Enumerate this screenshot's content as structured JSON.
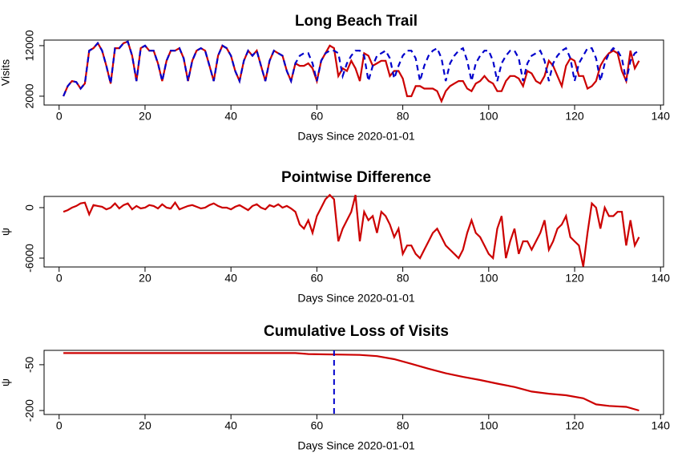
{
  "chart_data": [
    {
      "type": "line",
      "title": "Long Beach Trail",
      "xlabel": "Days Since 2020-01-01",
      "ylabel": "Visits",
      "xlim": [
        -3.5,
        140.7
      ],
      "xticks": [
        0,
        20,
        40,
        60,
        80,
        100,
        120,
        140
      ],
      "ylim": [
        250,
        13100
      ],
      "yticks": [
        2000,
        12000
      ],
      "x": [
        1,
        2,
        3,
        4,
        5,
        6,
        7,
        8,
        9,
        10,
        11,
        12,
        13,
        14,
        15,
        16,
        17,
        18,
        19,
        20,
        21,
        22,
        23,
        24,
        25,
        26,
        27,
        28,
        29,
        30,
        31,
        32,
        33,
        34,
        35,
        36,
        37,
        38,
        39,
        40,
        41,
        42,
        43,
        44,
        45,
        46,
        47,
        48,
        49,
        50,
        51,
        52,
        53,
        54,
        55,
        56,
        57,
        58,
        59,
        60,
        61,
        62,
        63,
        64,
        65,
        66,
        67,
        68,
        69,
        70,
        71,
        72,
        73,
        74,
        75,
        76,
        77,
        78,
        79,
        80,
        81,
        82,
        83,
        84,
        85,
        86,
        87,
        88,
        89,
        90,
        91,
        92,
        93,
        94,
        95,
        96,
        97,
        98,
        99,
        100,
        101,
        102,
        103,
        104,
        105,
        106,
        107,
        108,
        109,
        110,
        111,
        112,
        113,
        114,
        115,
        116,
        117,
        118,
        119,
        120,
        121,
        122,
        123,
        124,
        125,
        126,
        127,
        128,
        129,
        130,
        131,
        132,
        133,
        134,
        135
      ],
      "series": [
        {
          "color": "#cc0000",
          "linestyle": "solid",
          "values": [
            2000,
            4000,
            5000,
            4800,
            3500,
            4500,
            11000,
            11500,
            12500,
            11000,
            8000,
            4500,
            11500,
            11500,
            12500,
            12800,
            10000,
            5000,
            11500,
            12000,
            11000,
            11000,
            8500,
            5000,
            9000,
            11000,
            11000,
            11500,
            9500,
            5000,
            9000,
            11000,
            11500,
            11000,
            8000,
            5000,
            10000,
            12000,
            11500,
            10000,
            7000,
            5000,
            9000,
            11000,
            10000,
            11000,
            8000,
            5000,
            9000,
            11000,
            10500,
            10000,
            7000,
            5000,
            8500,
            8000,
            8000,
            8500,
            7500,
            5000,
            9000,
            10500,
            12000,
            11500,
            6000,
            7500,
            7000,
            9000,
            7500,
            5000,
            10500,
            10000,
            8000,
            8500,
            9000,
            9000,
            6000,
            7000,
            7000,
            5500,
            2000,
            2000,
            4000,
            4000,
            3500,
            3500,
            3500,
            3000,
            1000,
            3000,
            4000,
            4500,
            5000,
            5000,
            3500,
            3000,
            4500,
            5000,
            6000,
            5000,
            4500,
            3000,
            3000,
            5000,
            6000,
            6000,
            5500,
            4000,
            7000,
            6500,
            5000,
            4500,
            6000,
            9000,
            8000,
            6000,
            4000,
            8000,
            9500,
            9000,
            6000,
            6000,
            3500,
            4000,
            5000,
            8000,
            9500,
            10500,
            11000,
            10500,
            7000,
            5000,
            11000,
            7500,
            9000
          ]
        },
        {
          "color": "#0000cc",
          "linestyle": "dashed",
          "values": [
            2000,
            4000,
            5000,
            4800,
            3500,
            4500,
            11000,
            11500,
            12500,
            11000,
            8000,
            4500,
            11500,
            11500,
            12500,
            12800,
            10000,
            5000,
            11500,
            12000,
            11000,
            11000,
            8500,
            5000,
            9000,
            11000,
            11000,
            11500,
            9500,
            5000,
            9000,
            11000,
            11500,
            11000,
            8000,
            5000,
            10000,
            12000,
            11500,
            10000,
            7000,
            5000,
            9000,
            11000,
            10000,
            11000,
            8000,
            5000,
            9000,
            11000,
            10500,
            10000,
            7000,
            5000,
            8500,
            10000,
            10500,
            10500,
            8500,
            5000,
            9000,
            10500,
            11000,
            11000,
            10500,
            6000,
            8500,
            10000,
            11000,
            11000,
            10000,
            5000,
            8000,
            10000,
            10500,
            11000,
            9500,
            5500,
            8000,
            10000,
            11000,
            11000,
            9500,
            5000,
            8000,
            10000,
            11000,
            11500,
            9500,
            5000,
            8500,
            10000,
            11000,
            11500,
            9000,
            5000,
            8500,
            10000,
            11000,
            11000,
            9000,
            5000,
            8500,
            10000,
            11000,
            11000,
            9500,
            5000,
            8500,
            10000,
            10500,
            11000,
            9000,
            5000,
            8500,
            10000,
            11000,
            11500,
            9500,
            5000,
            8500,
            10000,
            11500,
            11500,
            9500,
            5000,
            8500,
            10500,
            11500,
            11000,
            9500,
            5000,
            9000,
            10500,
            11000
          ]
        }
      ]
    },
    {
      "type": "line",
      "title": "Pointwise Difference",
      "xlabel": "Days Since 2020-01-01",
      "ylabel": "ψ",
      "xlim": [
        -3.5,
        140.7
      ],
      "xticks": [
        0,
        20,
        40,
        60,
        80,
        100,
        120,
        140
      ],
      "ylim": [
        -7050,
        1330
      ],
      "yticks": [
        -6000,
        0
      ],
      "x": [
        1,
        2,
        3,
        4,
        5,
        6,
        7,
        8,
        9,
        10,
        11,
        12,
        13,
        14,
        15,
        16,
        17,
        18,
        19,
        20,
        21,
        22,
        23,
        24,
        25,
        26,
        27,
        28,
        29,
        30,
        31,
        32,
        33,
        34,
        35,
        36,
        37,
        38,
        39,
        40,
        41,
        42,
        43,
        44,
        45,
        46,
        47,
        48,
        49,
        50,
        51,
        52,
        53,
        54,
        55,
        56,
        57,
        58,
        59,
        60,
        61,
        62,
        63,
        64,
        65,
        66,
        67,
        68,
        69,
        70,
        71,
        72,
        73,
        74,
        75,
        76,
        77,
        78,
        79,
        80,
        81,
        82,
        83,
        84,
        85,
        86,
        87,
        88,
        89,
        90,
        91,
        92,
        93,
        94,
        95,
        96,
        97,
        98,
        99,
        100,
        101,
        102,
        103,
        104,
        105,
        106,
        107,
        108,
        109,
        110,
        111,
        112,
        113,
        114,
        115,
        116,
        117,
        118,
        119,
        120,
        121,
        122,
        123,
        124,
        125,
        126,
        127,
        128,
        129,
        130,
        131,
        132,
        133,
        134,
        135
      ],
      "series": [
        {
          "color": "#cc0000",
          "linestyle": "solid",
          "values": [
            -500,
            -300,
            0,
            200,
            500,
            600,
            -800,
            300,
            200,
            100,
            -200,
            0,
            500,
            -100,
            300,
            500,
            -200,
            200,
            -100,
            0,
            300,
            200,
            -100,
            400,
            0,
            -100,
            600,
            -200,
            0,
            200,
            300,
            100,
            -100,
            0,
            300,
            500,
            200,
            0,
            0,
            -200,
            100,
            300,
            0,
            -300,
            200,
            400,
            0,
            -200,
            300,
            100,
            400,
            0,
            200,
            -100,
            -500,
            -2000,
            -2500,
            -1500,
            -3000,
            -1000,
            0,
            1000,
            1500,
            1000,
            -4000,
            -2500,
            -1500,
            -500,
            1500,
            -4000,
            -500,
            -1500,
            -1000,
            -3000,
            -500,
            -1000,
            -2000,
            -3500,
            -2500,
            -5500,
            -4500,
            -4500,
            -5500,
            -6000,
            -5000,
            -4000,
            -3000,
            -2500,
            -3500,
            -4500,
            -5000,
            -5500,
            -6000,
            -5000,
            -3000,
            -1500,
            -3000,
            -3500,
            -4500,
            -5500,
            -6000,
            -2500,
            -1000,
            -6000,
            -4000,
            -2500,
            -5500,
            -4000,
            -4000,
            -5000,
            -4000,
            -3000,
            -1500,
            -5000,
            -4000,
            -2500,
            -2000,
            -1000,
            -3500,
            -4000,
            -4500,
            -7000,
            -3000,
            500,
            0,
            -2500,
            0,
            -1000,
            -1000,
            -500,
            -500,
            -4500,
            -1500,
            -4500,
            -3500
          ]
        }
      ]
    },
    {
      "type": "line",
      "title": "Cumulative Loss of Visits",
      "xlabel": "Days Since 2020-01-01",
      "ylabel": "ψ",
      "xlim": [
        -3.5,
        140.7
      ],
      "xticks": [
        0,
        20,
        40,
        60,
        80,
        100,
        120,
        140
      ],
      "ylim": [
        -213,
        -3
      ],
      "yticks": [
        -200,
        -50
      ],
      "vlines": [
        {
          "x": 64,
          "color": "#0000cc"
        }
      ],
      "x": [
        1,
        10,
        20,
        30,
        40,
        50,
        55,
        58,
        62,
        66,
        70,
        74,
        78,
        82,
        86,
        90,
        94,
        98,
        102,
        106,
        110,
        114,
        118,
        122,
        125,
        128,
        132,
        135
      ],
      "series": [
        {
          "color": "#cc0000",
          "linestyle": "solid",
          "values": [
            -12,
            -12,
            -12,
            -12,
            -12,
            -12,
            -12,
            -15,
            -16,
            -17,
            -18,
            -22,
            -32,
            -47,
            -63,
            -78,
            -90,
            -100,
            -112,
            -123,
            -138,
            -145,
            -150,
            -160,
            -180,
            -185,
            -188,
            -200
          ]
        }
      ]
    }
  ]
}
